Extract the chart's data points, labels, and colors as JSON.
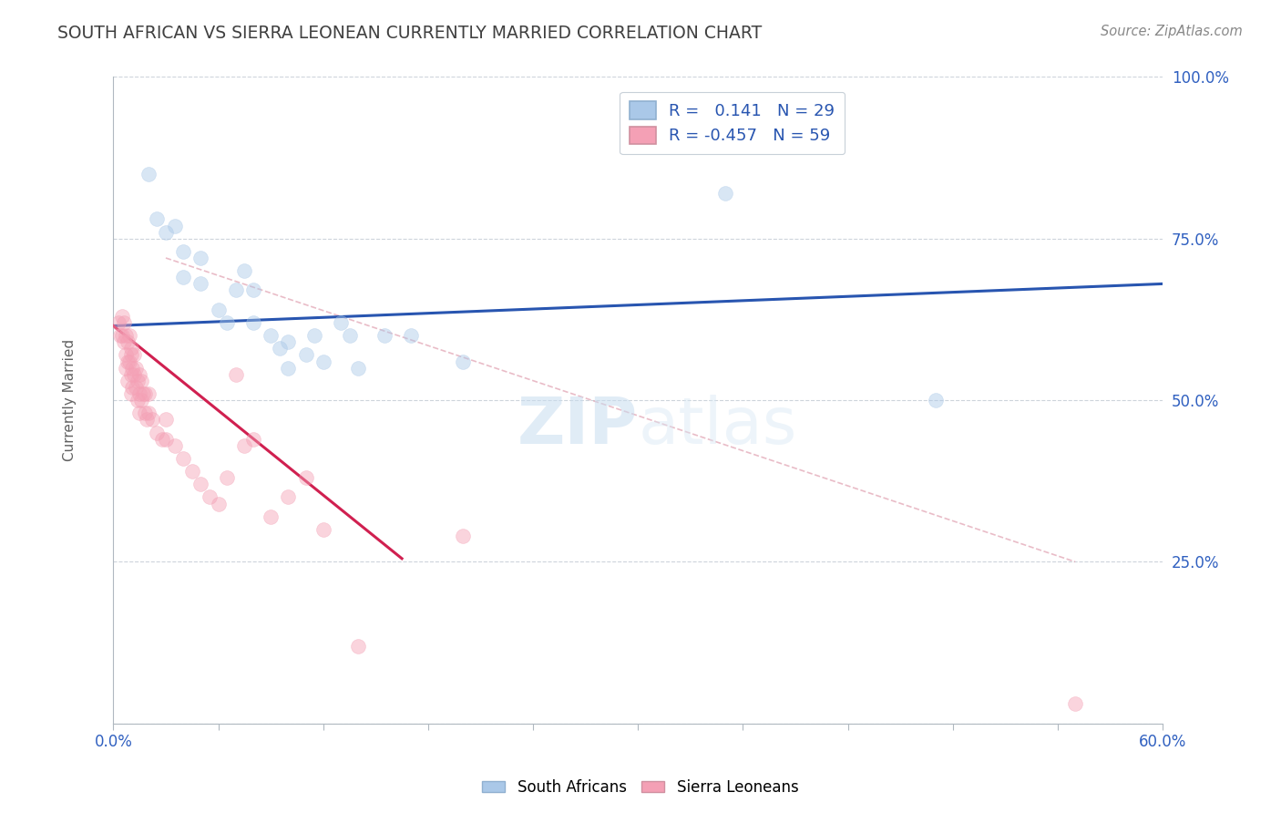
{
  "title": "SOUTH AFRICAN VS SIERRA LEONEAN CURRENTLY MARRIED CORRELATION CHART",
  "source": "Source: ZipAtlas.com",
  "xlabel": "",
  "ylabel": "Currently Married",
  "xlim": [
    0.0,
    0.6
  ],
  "ylim": [
    0.0,
    1.0
  ],
  "xticks": [
    0.0,
    0.06,
    0.12,
    0.18,
    0.24,
    0.3,
    0.36,
    0.42,
    0.48,
    0.54,
    0.6
  ],
  "xticklabels": [
    "0.0%",
    "",
    "",
    "",
    "",
    "",
    "",
    "",
    "",
    "",
    "60.0%"
  ],
  "yticks": [
    0.0,
    0.25,
    0.5,
    0.75,
    1.0
  ],
  "yticklabels_right": [
    "",
    "25.0%",
    "50.0%",
    "75.0%",
    "100.0%"
  ],
  "legend_r_blue": "0.141",
  "legend_n_blue": "29",
  "legend_r_pink": "-0.457",
  "legend_n_pink": "59",
  "blue_color": "#aac8e8",
  "pink_color": "#f4a0b5",
  "blue_line_color": "#2855b0",
  "pink_line_color": "#d02050",
  "legend_text_color": "#2855b0",
  "title_color": "#404040",
  "axis_label_color": "#606060",
  "watermark_part1": "ZIP",
  "watermark_part2": "atlas",
  "blue_scatter_x": [
    0.02,
    0.025,
    0.03,
    0.035,
    0.04,
    0.04,
    0.05,
    0.05,
    0.06,
    0.065,
    0.07,
    0.075,
    0.08,
    0.08,
    0.09,
    0.095,
    0.1,
    0.1,
    0.11,
    0.115,
    0.12,
    0.13,
    0.135,
    0.14,
    0.155,
    0.17,
    0.2,
    0.35,
    0.47
  ],
  "blue_scatter_y": [
    0.85,
    0.78,
    0.76,
    0.77,
    0.73,
    0.69,
    0.72,
    0.68,
    0.64,
    0.62,
    0.67,
    0.7,
    0.62,
    0.67,
    0.6,
    0.58,
    0.55,
    0.59,
    0.57,
    0.6,
    0.56,
    0.62,
    0.6,
    0.55,
    0.6,
    0.6,
    0.56,
    0.82,
    0.5
  ],
  "pink_scatter_x": [
    0.003,
    0.004,
    0.005,
    0.005,
    0.006,
    0.006,
    0.007,
    0.007,
    0.007,
    0.008,
    0.008,
    0.008,
    0.009,
    0.009,
    0.01,
    0.01,
    0.01,
    0.01,
    0.011,
    0.011,
    0.012,
    0.012,
    0.013,
    0.013,
    0.014,
    0.014,
    0.015,
    0.015,
    0.015,
    0.016,
    0.016,
    0.017,
    0.018,
    0.018,
    0.019,
    0.02,
    0.02,
    0.022,
    0.025,
    0.028,
    0.03,
    0.03,
    0.035,
    0.04,
    0.045,
    0.05,
    0.055,
    0.06,
    0.065,
    0.07,
    0.075,
    0.08,
    0.09,
    0.1,
    0.11,
    0.12,
    0.14,
    0.2,
    0.55
  ],
  "pink_scatter_y": [
    0.62,
    0.6,
    0.6,
    0.63,
    0.59,
    0.62,
    0.6,
    0.57,
    0.55,
    0.59,
    0.56,
    0.53,
    0.56,
    0.6,
    0.57,
    0.54,
    0.51,
    0.58,
    0.55,
    0.52,
    0.54,
    0.57,
    0.52,
    0.55,
    0.5,
    0.53,
    0.51,
    0.54,
    0.48,
    0.5,
    0.53,
    0.51,
    0.48,
    0.51,
    0.47,
    0.48,
    0.51,
    0.47,
    0.45,
    0.44,
    0.44,
    0.47,
    0.43,
    0.41,
    0.39,
    0.37,
    0.35,
    0.34,
    0.38,
    0.54,
    0.43,
    0.44,
    0.32,
    0.35,
    0.38,
    0.3,
    0.12,
    0.29,
    0.03
  ],
  "blue_line_x": [
    0.0,
    0.6
  ],
  "blue_line_y": [
    0.615,
    0.68
  ],
  "pink_line_x": [
    0.0,
    0.165
  ],
  "pink_line_y": [
    0.615,
    0.255
  ],
  "diag_line_x": [
    0.03,
    0.55
  ],
  "diag_line_y": [
    0.72,
    0.25
  ],
  "background_color": "#ffffff",
  "grid_color": "#c8d0d8",
  "scatter_size": 130,
  "scatter_alpha": 0.45,
  "scatter_linewidth": 0.5
}
